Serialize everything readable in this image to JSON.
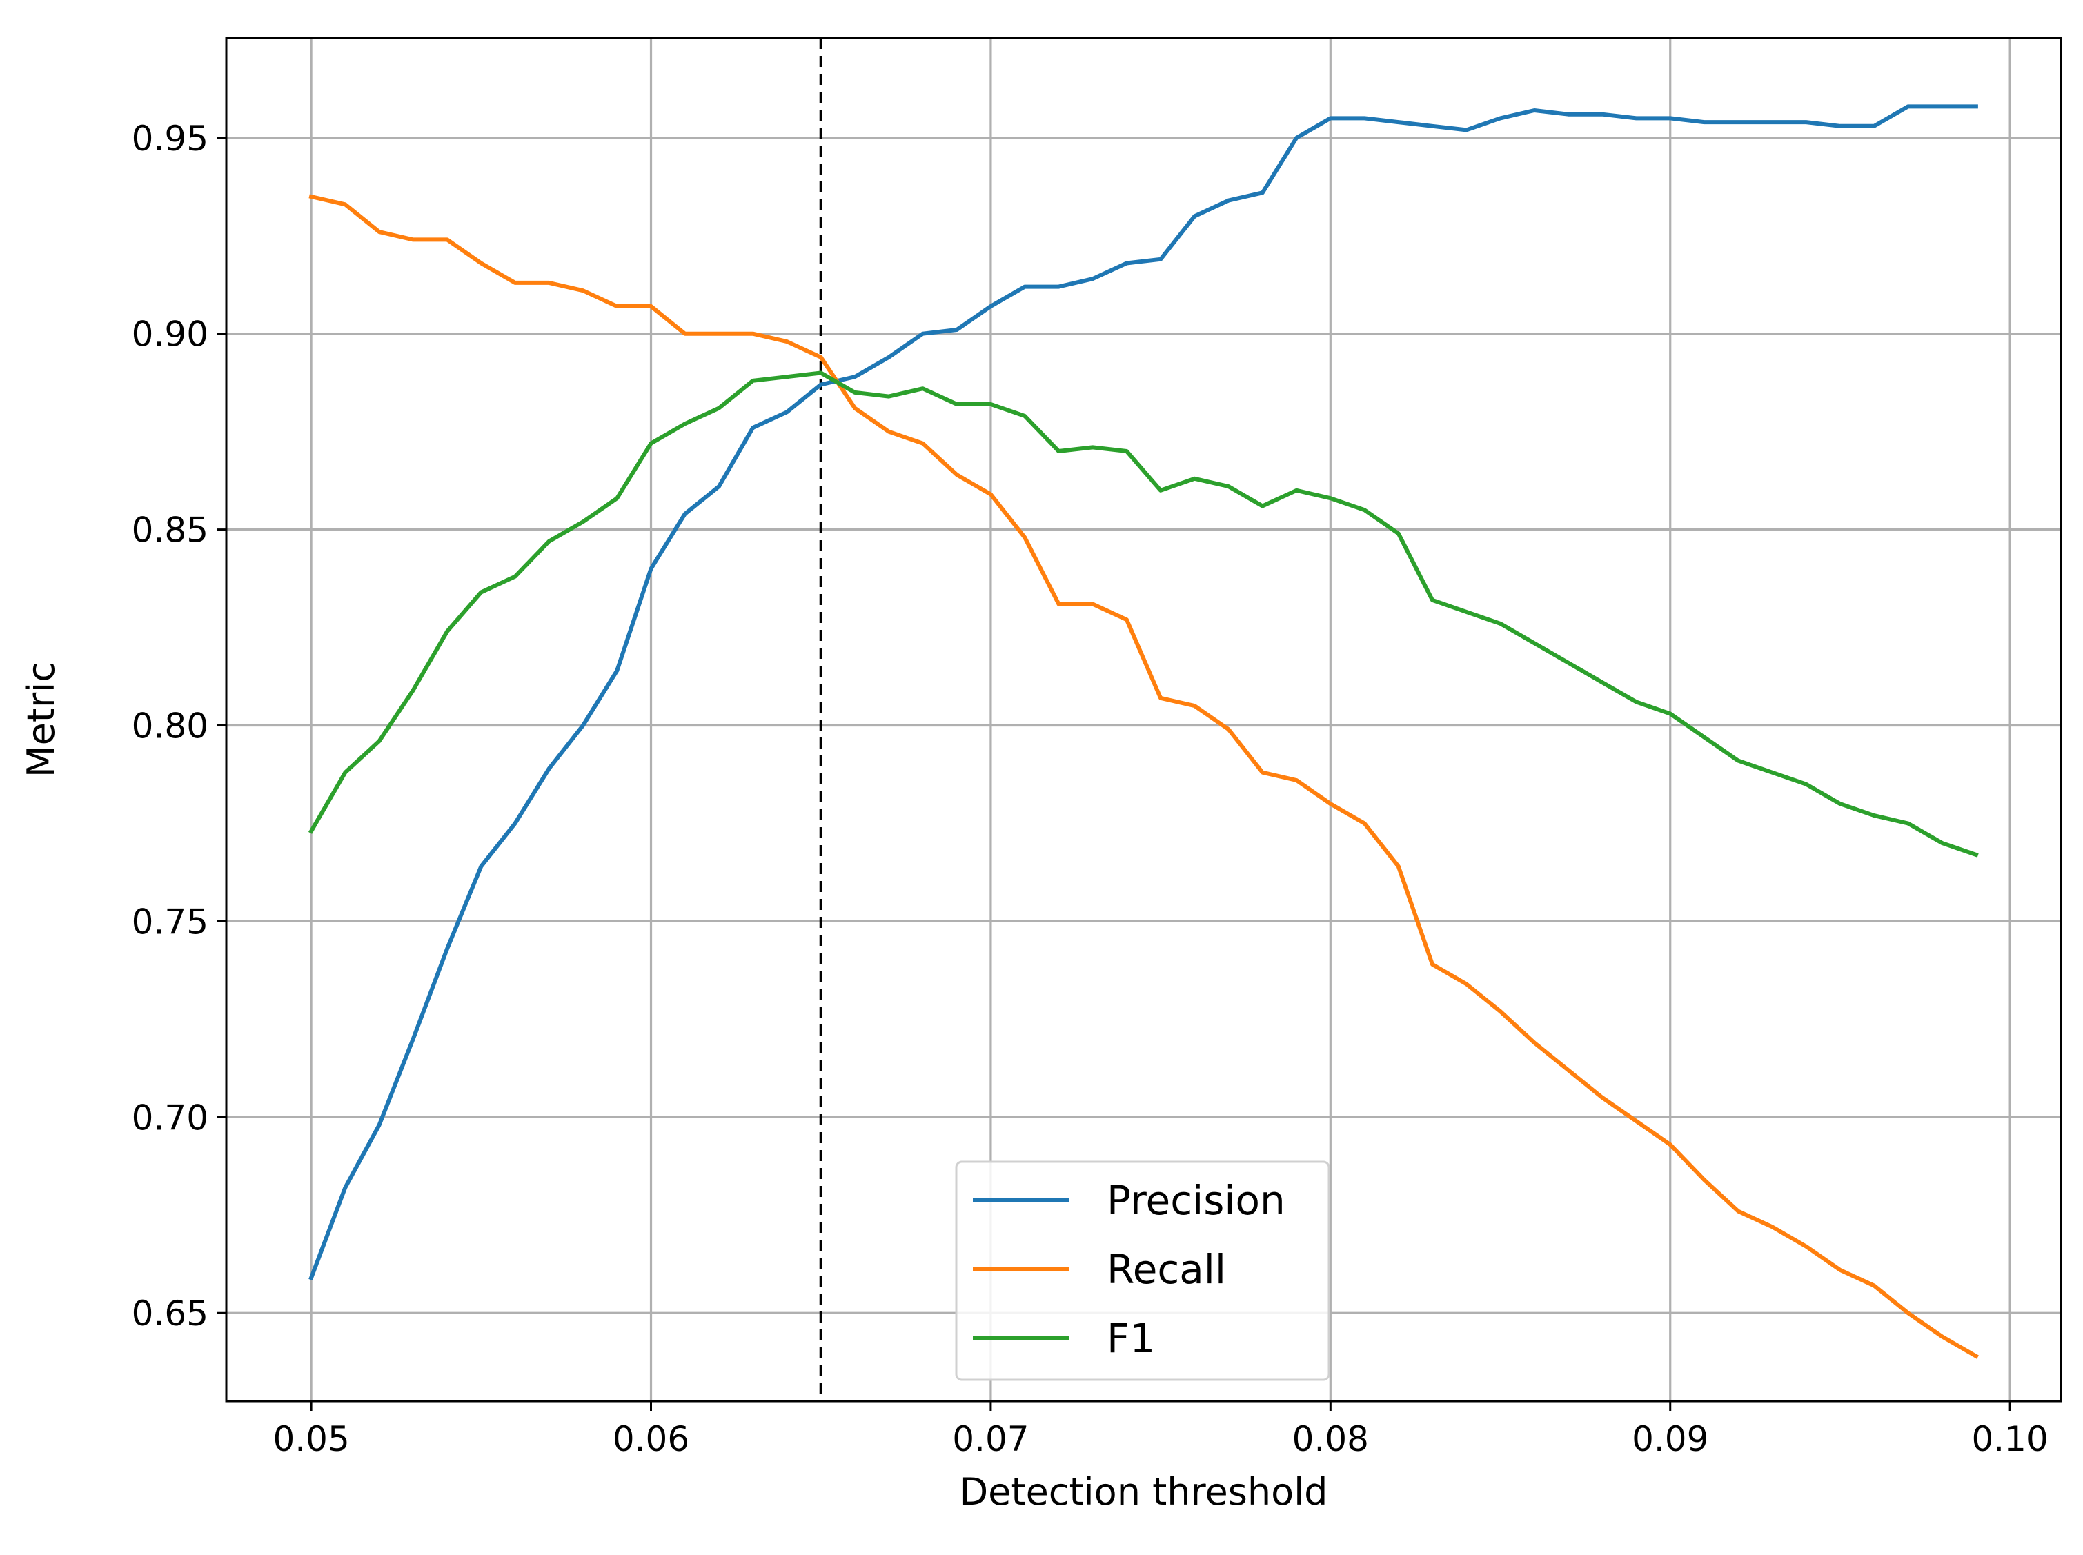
{
  "chart_data": {
    "type": "line",
    "title": "",
    "xlabel": "Detection threshold",
    "ylabel": "Metric",
    "xlim": [
      0.0475,
      0.1015
    ],
    "ylim": [
      0.6275,
      0.9755
    ],
    "xticks": [
      0.05,
      0.06,
      0.07,
      0.08,
      0.09,
      0.1
    ],
    "xtick_labels": [
      "0.05",
      "0.06",
      "0.07",
      "0.08",
      "0.09",
      "0.10"
    ],
    "yticks": [
      0.65,
      0.7,
      0.75,
      0.8,
      0.85,
      0.9,
      0.95
    ],
    "ytick_labels": [
      "0.65",
      "0.70",
      "0.75",
      "0.80",
      "0.85",
      "0.90",
      "0.95"
    ],
    "grid": true,
    "legend_position": "bottom-center",
    "vline": {
      "x": 0.065,
      "style": "dashed",
      "color": "#000000"
    },
    "x": [
      0.05,
      0.051,
      0.052,
      0.053,
      0.054,
      0.055,
      0.056,
      0.057,
      0.058,
      0.059,
      0.06,
      0.061,
      0.062,
      0.063,
      0.064,
      0.065,
      0.066,
      0.067,
      0.068,
      0.069,
      0.07,
      0.071,
      0.072,
      0.073,
      0.074,
      0.075,
      0.076,
      0.077,
      0.078,
      0.079,
      0.08,
      0.081,
      0.082,
      0.083,
      0.084,
      0.085,
      0.086,
      0.087,
      0.088,
      0.089,
      0.09,
      0.091,
      0.092,
      0.093,
      0.094,
      0.095,
      0.096,
      0.097,
      0.098,
      0.099
    ],
    "series": [
      {
        "name": "Precision",
        "color": "#1f77b4",
        "values": [
          0.659,
          0.682,
          0.698,
          0.72,
          0.743,
          0.764,
          0.775,
          0.789,
          0.8,
          0.814,
          0.84,
          0.854,
          0.861,
          0.876,
          0.88,
          0.887,
          0.889,
          0.894,
          0.9,
          0.901,
          0.907,
          0.912,
          0.912,
          0.914,
          0.918,
          0.919,
          0.93,
          0.934,
          0.936,
          0.95,
          0.955,
          0.955,
          0.954,
          0.953,
          0.952,
          0.955,
          0.957,
          0.956,
          0.956,
          0.955,
          0.955,
          0.954,
          0.954,
          0.954,
          0.954,
          0.953,
          0.953,
          0.958,
          0.958,
          0.958
        ]
      },
      {
        "name": "Recall",
        "color": "#ff7f0e",
        "values": [
          0.935,
          0.933,
          0.926,
          0.924,
          0.924,
          0.918,
          0.913,
          0.913,
          0.911,
          0.907,
          0.907,
          0.9,
          0.9,
          0.9,
          0.898,
          0.894,
          0.881,
          0.875,
          0.872,
          0.864,
          0.859,
          0.848,
          0.831,
          0.831,
          0.827,
          0.807,
          0.805,
          0.799,
          0.788,
          0.786,
          0.78,
          0.775,
          0.764,
          0.739,
          0.734,
          0.727,
          0.719,
          0.712,
          0.705,
          0.699,
          0.693,
          0.684,
          0.676,
          0.672,
          0.667,
          0.661,
          0.657,
          0.65,
          0.644,
          0.639
        ]
      },
      {
        "name": "F1",
        "color": "#2ca02c",
        "values": [
          0.773,
          0.788,
          0.796,
          0.809,
          0.824,
          0.834,
          0.838,
          0.847,
          0.852,
          0.858,
          0.872,
          0.877,
          0.881,
          0.888,
          0.889,
          0.89,
          0.885,
          0.884,
          0.886,
          0.882,
          0.882,
          0.879,
          0.87,
          0.871,
          0.87,
          0.86,
          0.863,
          0.861,
          0.856,
          0.86,
          0.858,
          0.855,
          0.849,
          0.832,
          0.829,
          0.826,
          0.821,
          0.816,
          0.811,
          0.806,
          0.803,
          0.797,
          0.791,
          0.788,
          0.785,
          0.78,
          0.777,
          0.775,
          0.77,
          0.767
        ]
      }
    ]
  }
}
